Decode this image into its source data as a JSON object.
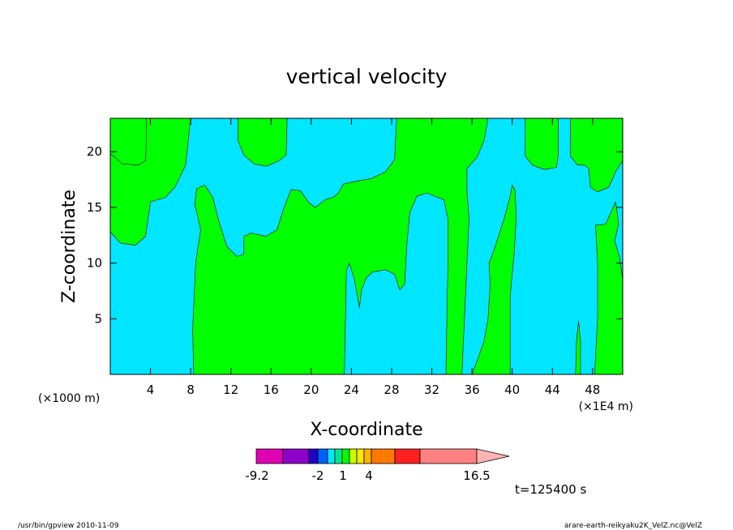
{
  "chart_data": {
    "type": "heatmap",
    "title": "vertical velocity",
    "xlabel": "X-coordinate",
    "ylabel": "Z-coordinate",
    "x_unit_left": "(×1000 m)",
    "x_unit_right": "(×1E4 m)",
    "xlim": [
      0,
      51
    ],
    "ylim": [
      0,
      23
    ],
    "x_ticks": [
      4,
      8,
      12,
      16,
      20,
      24,
      28,
      32,
      36,
      40,
      44,
      48
    ],
    "y_ticks": [
      5,
      10,
      15,
      20
    ],
    "grid": false,
    "colorbar": {
      "labels": [
        {
          "value": -9.2,
          "text": "-9.2"
        },
        {
          "value": -2,
          "text": "-2"
        },
        {
          "value": 1,
          "text": "1"
        },
        {
          "value": 4,
          "text": "4"
        },
        {
          "value": 16.5,
          "text": "16.5"
        }
      ],
      "colors": [
        "#e000b4",
        "#8c00c8",
        "#2000c8",
        "#0060ff",
        "#00e6ff",
        "#00e68c",
        "#00ff00",
        "#c8ff00",
        "#ffe600",
        "#ffb400",
        "#ff7800",
        "#ff2020",
        "#ff8080",
        "#ffb4b4"
      ]
    },
    "regions": [
      {
        "name": "positive",
        "color": "#00ff00",
        "polygon": [
          [
            0,
            12.8
          ],
          [
            1,
            11.8
          ],
          [
            2.5,
            11.6
          ],
          [
            3.5,
            12.4
          ],
          [
            4,
            15.5
          ],
          [
            5.5,
            15.9
          ],
          [
            6.5,
            16.9
          ],
          [
            7.5,
            18.8
          ],
          [
            8,
            23
          ],
          [
            0,
            23
          ]
        ]
      },
      {
        "name": "positive",
        "color": "#00ff00",
        "polygon": [
          [
            3.6,
            23
          ],
          [
            3.6,
            21
          ],
          [
            3.5,
            19.2
          ],
          [
            2.8,
            18.8
          ],
          [
            1.2,
            18.9
          ],
          [
            0.5,
            19.5
          ],
          [
            0,
            19.8
          ],
          [
            0,
            23
          ]
        ]
      },
      {
        "name": "positive",
        "color": "#00ff00",
        "polygon": [
          [
            8.3,
            0
          ],
          [
            8.2,
            4
          ],
          [
            8.5,
            10
          ],
          [
            9,
            13
          ],
          [
            8.4,
            15.3
          ],
          [
            8.6,
            16.7
          ],
          [
            9.4,
            17
          ],
          [
            10.2,
            15.9
          ],
          [
            10.8,
            13.8
          ],
          [
            11.6,
            11.5
          ],
          [
            12.6,
            10.6
          ],
          [
            13.3,
            10.8
          ],
          [
            13.3,
            12.4
          ],
          [
            14,
            12.7
          ],
          [
            15.5,
            12.4
          ],
          [
            16.6,
            13
          ],
          [
            17.3,
            15
          ],
          [
            18,
            16.6
          ],
          [
            18.9,
            16.5
          ],
          [
            19.8,
            15.4
          ],
          [
            20.4,
            15
          ],
          [
            21.4,
            15.7
          ],
          [
            22.2,
            15.9
          ],
          [
            22.7,
            16.3
          ],
          [
            23.2,
            17.1
          ],
          [
            24.2,
            17.3
          ],
          [
            26,
            17.6
          ],
          [
            27.4,
            18.2
          ],
          [
            28.3,
            19.3
          ],
          [
            28.5,
            23
          ],
          [
            37.6,
            23
          ],
          [
            37.2,
            21
          ],
          [
            36.5,
            19.5
          ],
          [
            35.5,
            18.5
          ],
          [
            35.5,
            16.5
          ],
          [
            35.7,
            14
          ],
          [
            35.3,
            6
          ],
          [
            35,
            0
          ],
          [
            33.4,
            0
          ],
          [
            33.6,
            10
          ],
          [
            33.6,
            14
          ],
          [
            33.2,
            15.7
          ],
          [
            31.5,
            16.3
          ],
          [
            30.5,
            16
          ],
          [
            29.8,
            14.5
          ],
          [
            29.5,
            11.5
          ],
          [
            29.3,
            8.1
          ],
          [
            28.8,
            7.6
          ],
          [
            28.3,
            9
          ],
          [
            27.4,
            9.4
          ],
          [
            26.1,
            9.2
          ],
          [
            25.5,
            8.7
          ],
          [
            25,
            7.6
          ],
          [
            24.8,
            6
          ],
          [
            24.3,
            8.5
          ],
          [
            23.8,
            10
          ],
          [
            23.5,
            9.3
          ],
          [
            23.3,
            0
          ]
        ]
      },
      {
        "name": "positive",
        "color": "#00ff00",
        "polygon": [
          [
            12.7,
            23
          ],
          [
            12.7,
            21
          ],
          [
            13.3,
            19.7
          ],
          [
            14.3,
            18.9
          ],
          [
            15.6,
            18.7
          ],
          [
            16.8,
            19.2
          ],
          [
            17.5,
            19.7
          ],
          [
            17.6,
            23
          ]
        ]
      },
      {
        "name": "positive",
        "color": "#00ff00",
        "polygon": [
          [
            36,
            0
          ],
          [
            36.5,
            1.2
          ],
          [
            37.2,
            3
          ],
          [
            37.6,
            5
          ],
          [
            37.8,
            8
          ],
          [
            37.7,
            10
          ],
          [
            38.2,
            11.2
          ],
          [
            38.6,
            12.3
          ],
          [
            39.2,
            14
          ],
          [
            39.8,
            16
          ],
          [
            40,
            17
          ],
          [
            40.3,
            16.5
          ],
          [
            40.4,
            14
          ],
          [
            40.2,
            11
          ],
          [
            39.8,
            7
          ],
          [
            39.8,
            0
          ]
        ]
      },
      {
        "name": "positive",
        "color": "#00ff00",
        "polygon": [
          [
            41.3,
            23
          ],
          [
            41.3,
            19.6
          ],
          [
            42,
            18.8
          ],
          [
            43.2,
            18.4
          ],
          [
            44.4,
            18.6
          ],
          [
            44.6,
            19.8
          ],
          [
            44.6,
            23
          ]
        ]
      },
      {
        "name": "positive",
        "color": "#00ff00",
        "polygon": [
          [
            45.8,
            23
          ],
          [
            45.8,
            19.6
          ],
          [
            46.5,
            18.8
          ],
          [
            47.2,
            18.8
          ],
          [
            47.6,
            18.5
          ],
          [
            47.8,
            16.8
          ],
          [
            48.5,
            16.4
          ],
          [
            49.6,
            16.8
          ],
          [
            50.3,
            18.2
          ],
          [
            51,
            19.2
          ],
          [
            51,
            23
          ]
        ]
      },
      {
        "name": "positive",
        "color": "#00ff00",
        "polygon": [
          [
            48.2,
            0
          ],
          [
            48.5,
            5
          ],
          [
            48.5,
            10
          ],
          [
            48.3,
            13.4
          ],
          [
            49.3,
            13.5
          ],
          [
            49.9,
            14.7
          ],
          [
            50.3,
            15.5
          ],
          [
            50.6,
            13.5
          ],
          [
            50.2,
            12
          ],
          [
            50.7,
            10.5
          ],
          [
            51,
            8.5
          ],
          [
            51,
            0
          ]
        ]
      },
      {
        "name": "positive",
        "color": "#00ff00",
        "polygon": [
          [
            46.3,
            0
          ],
          [
            46.4,
            3
          ],
          [
            46.6,
            4.8
          ],
          [
            46.8,
            3
          ],
          [
            46.8,
            0
          ]
        ]
      }
    ],
    "time_label": "t=125400 s",
    "footer_left": "/usr/bin/gpview   2010-11-09",
    "footer_right": "arare-earth-reikyaku2K_VelZ.nc@VelZ"
  }
}
